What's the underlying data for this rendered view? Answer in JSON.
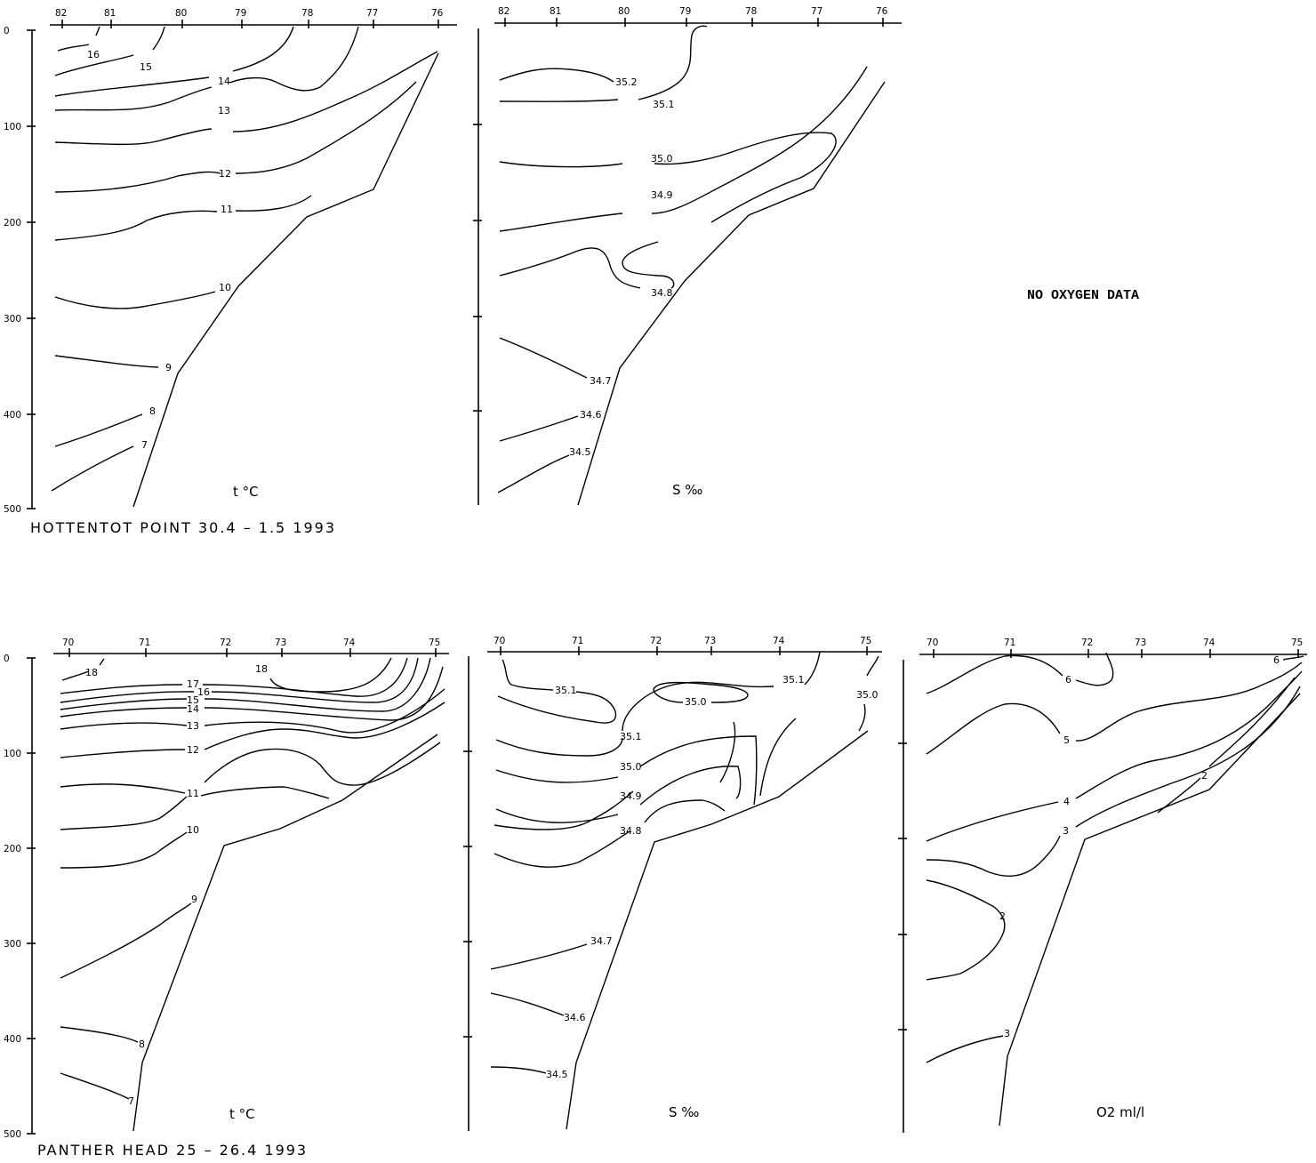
{
  "sections": [
    {
      "title": "HOTTENTOT POINT   30.4 – 1.5  1993"
    },
    {
      "title": "PANTHER HEAD   25 – 26.4 1993"
    }
  ],
  "no_data_note": "NO OXYGEN DATA",
  "chart_data": [
    {
      "type": "line",
      "section": "HOTTENTOT POINT",
      "panel_label": "t °C",
      "x_stations": [
        "82",
        "81",
        "80",
        "79",
        "78",
        "77",
        "76"
      ],
      "xlim": [
        82,
        76
      ],
      "y_ticks": [
        "0",
        "100",
        "200",
        "300",
        "400",
        "500"
      ],
      "ylim": [
        0,
        500
      ],
      "contour_labels": [
        "16",
        "15",
        "14",
        "13",
        "12",
        "11",
        "10",
        "9",
        "8",
        "7"
      ]
    },
    {
      "type": "line",
      "section": "HOTTENTOT POINT",
      "panel_label": "S ‰",
      "x_stations": [
        "82",
        "81",
        "80",
        "79",
        "78",
        "77",
        "76"
      ],
      "xlim": [
        82,
        76
      ],
      "ylim": [
        0,
        500
      ],
      "contour_labels": [
        "35.2",
        "35.1",
        "35.0",
        "34.9",
        "34.8",
        "34.7",
        "34.6",
        "34.5"
      ]
    },
    {
      "type": "line",
      "section": "PANTHER HEAD",
      "panel_label": "t °C",
      "x_stations": [
        "70",
        "71",
        "72",
        "73",
        "74",
        "75"
      ],
      "xlim": [
        70,
        75
      ],
      "y_ticks": [
        "0",
        "100",
        "200",
        "300",
        "400",
        "500"
      ],
      "ylim": [
        0,
        500
      ],
      "contour_labels": [
        "18",
        "18",
        "17",
        "16",
        "15",
        "14",
        "13",
        "12",
        "11",
        "10",
        "9",
        "8",
        "7"
      ]
    },
    {
      "type": "line",
      "section": "PANTHER HEAD",
      "panel_label": "S ‰",
      "x_stations": [
        "70",
        "71",
        "72",
        "73",
        "74",
        "75"
      ],
      "xlim": [
        70,
        75
      ],
      "ylim": [
        0,
        500
      ],
      "contour_labels": [
        "35.1",
        "35.1",
        "35.0",
        "35.0",
        "35.1",
        "35.0",
        "34.9",
        "34.8",
        "34.7",
        "34.6",
        "34.5"
      ]
    },
    {
      "type": "line",
      "section": "PANTHER HEAD",
      "panel_label": "O2 ml/l",
      "x_stations": [
        "70",
        "71",
        "72",
        "73",
        "74",
        "75"
      ],
      "xlim": [
        70,
        75
      ],
      "ylim": [
        0,
        500
      ],
      "contour_labels": [
        "6",
        "6",
        "5",
        "4",
        "3",
        "2",
        "2",
        "3"
      ]
    }
  ]
}
